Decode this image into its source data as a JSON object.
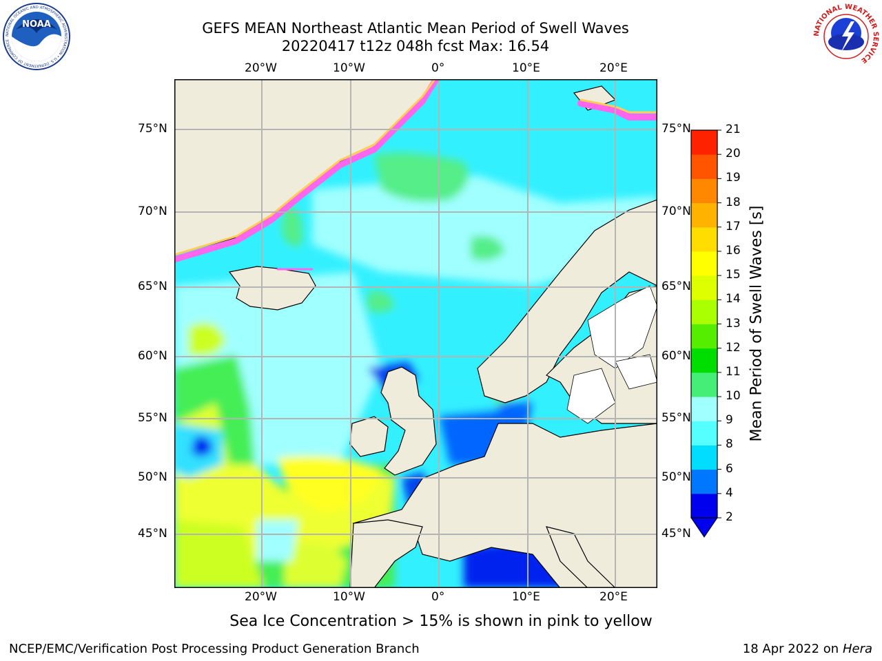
{
  "title": {
    "line1": "GEFS MEAN Northeast Atlantic Mean Period of Swell Waves",
    "line2": "20220417 t12z 048h fcst   Max: 16.54"
  },
  "map": {
    "lon_labels": [
      "20°W",
      "10°W",
      "0°",
      "10°E",
      "20°E"
    ],
    "lat_labels": [
      "75°N",
      "70°N",
      "65°N",
      "60°N",
      "55°N",
      "50°N",
      "45°N"
    ],
    "colors": {
      "land": "#efecdc",
      "ice": "#ff66ee",
      "grid": "#b4b4b4"
    }
  },
  "colorbar": {
    "title": "Mean Period of Swell Waves [s]",
    "ticks": [
      "2",
      "4",
      "6",
      "8",
      "9",
      "10",
      "11",
      "12",
      "13",
      "14",
      "15",
      "16",
      "17",
      "18",
      "19",
      "20",
      "21"
    ],
    "colors": [
      "#0000ee",
      "#0077ff",
      "#00ddff",
      "#55ffff",
      "#a0ffff",
      "#44ee77",
      "#00dd00",
      "#55ee00",
      "#aaff00",
      "#ddff00",
      "#ffff00",
      "#ffdd00",
      "#ffb300",
      "#ff8800",
      "#ff5500",
      "#ff2200",
      "#ff0000"
    ]
  },
  "caption": "Sea Ice Concentration > 15% is shown in pink to yellow",
  "footer": {
    "left": "NCEP/EMC/Verification Post Processing Product Generation Branch",
    "right_date": "18 Apr 2022 on ",
    "right_host": "Hera"
  },
  "logos": {
    "noaa": "NOAA",
    "noaa_ring": "NATIONAL OCEANIC AND ATMOSPHERIC ADMINISTRATION • U.S. DEPARTMENT OF COMMERCE",
    "nws_ring": "NATIONAL WEATHER SERVICE"
  }
}
